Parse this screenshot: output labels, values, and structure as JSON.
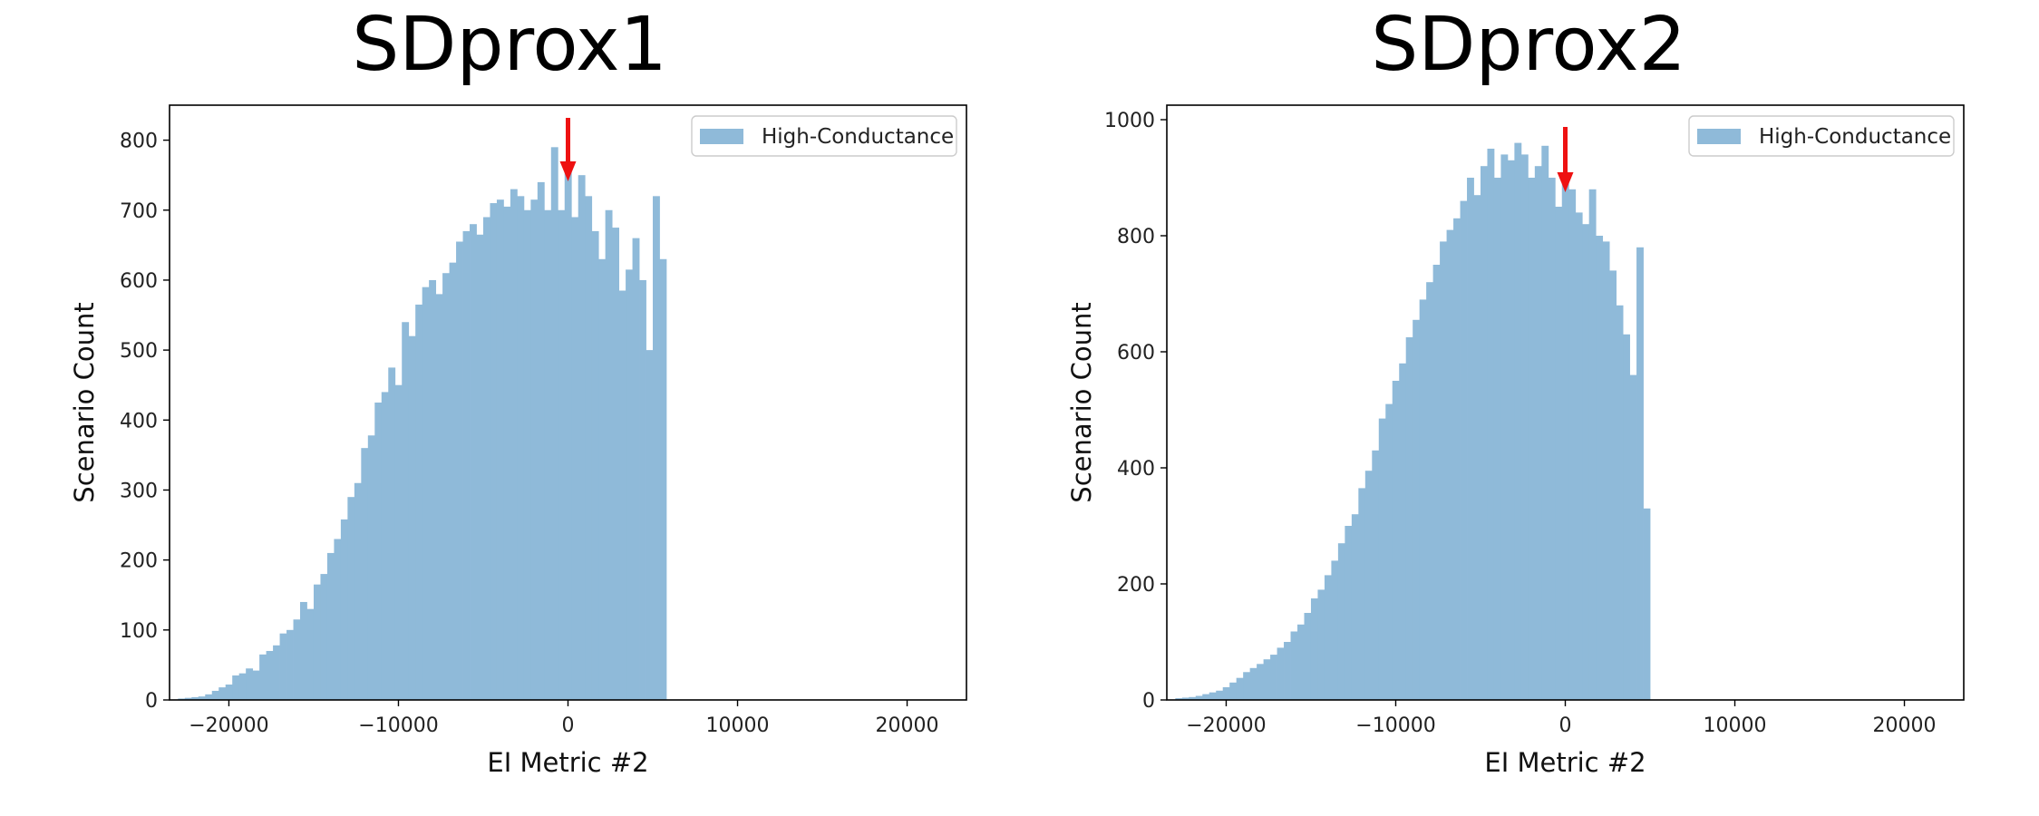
{
  "chart_data": [
    {
      "type": "bar",
      "title": "SDprox1",
      "xlabel": "EI Metric #2",
      "ylabel": "Scenario Count",
      "xlim": [
        -23500,
        23500
      ],
      "ylim": [
        0,
        850
      ],
      "xticks": [
        -20000,
        -10000,
        0,
        10000,
        20000
      ],
      "xtick_labels": [
        "−20000",
        "−10000",
        "0",
        "10000",
        "20000"
      ],
      "yticks": [
        0,
        100,
        200,
        300,
        400,
        500,
        600,
        700,
        800
      ],
      "ytick_labels": [
        "0",
        "100",
        "200",
        "300",
        "400",
        "500",
        "600",
        "700",
        "800"
      ],
      "legend": {
        "label": "High-Conductance",
        "position": "top-right"
      },
      "color": "#8fbad9",
      "bin_start": -23000,
      "bin_width": 400,
      "values": [
        2,
        3,
        4,
        5,
        8,
        13,
        18,
        22,
        35,
        38,
        45,
        42,
        65,
        70,
        78,
        95,
        100,
        115,
        140,
        130,
        165,
        180,
        210,
        230,
        258,
        290,
        310,
        360,
        378,
        425,
        440,
        475,
        450,
        540,
        520,
        565,
        590,
        600,
        580,
        610,
        625,
        655,
        670,
        680,
        665,
        690,
        710,
        715,
        705,
        730,
        720,
        700,
        715,
        740,
        700,
        790,
        700,
        770,
        690,
        750,
        720,
        670,
        630,
        700,
        675,
        585,
        615,
        660,
        600,
        500,
        720,
        630
      ],
      "annotation": {
        "type": "arrow",
        "color": "#ee1111",
        "x": 0,
        "y_from": 835,
        "y_to": 740
      }
    },
    {
      "type": "bar",
      "title": "SDprox2",
      "xlabel": "EI Metric #2",
      "ylabel": "Scenario Count",
      "xlim": [
        -23500,
        23500
      ],
      "ylim": [
        0,
        1025
      ],
      "xticks": [
        -20000,
        -10000,
        0,
        10000,
        20000
      ],
      "xtick_labels": [
        "−20000",
        "−10000",
        "0",
        "10000",
        "20000"
      ],
      "yticks": [
        0,
        200,
        400,
        600,
        800,
        1000
      ],
      "ytick_labels": [
        "0",
        "200",
        "400",
        "600",
        "800",
        "1000"
      ],
      "legend": {
        "label": "High-Conductance",
        "position": "top-right"
      },
      "color": "#8fbad9",
      "bin_start": -23000,
      "bin_width": 400,
      "values": [
        3,
        4,
        5,
        7,
        10,
        13,
        16,
        22,
        30,
        38,
        48,
        55,
        62,
        70,
        78,
        90,
        100,
        118,
        130,
        150,
        175,
        190,
        215,
        240,
        270,
        300,
        320,
        365,
        395,
        430,
        485,
        510,
        550,
        580,
        625,
        655,
        690,
        720,
        750,
        790,
        810,
        830,
        860,
        900,
        870,
        920,
        950,
        900,
        940,
        930,
        960,
        940,
        900,
        920,
        955,
        900,
        850,
        900,
        880,
        840,
        820,
        880,
        800,
        790,
        740,
        680,
        630,
        560,
        780,
        330
      ]
    }
  ]
}
